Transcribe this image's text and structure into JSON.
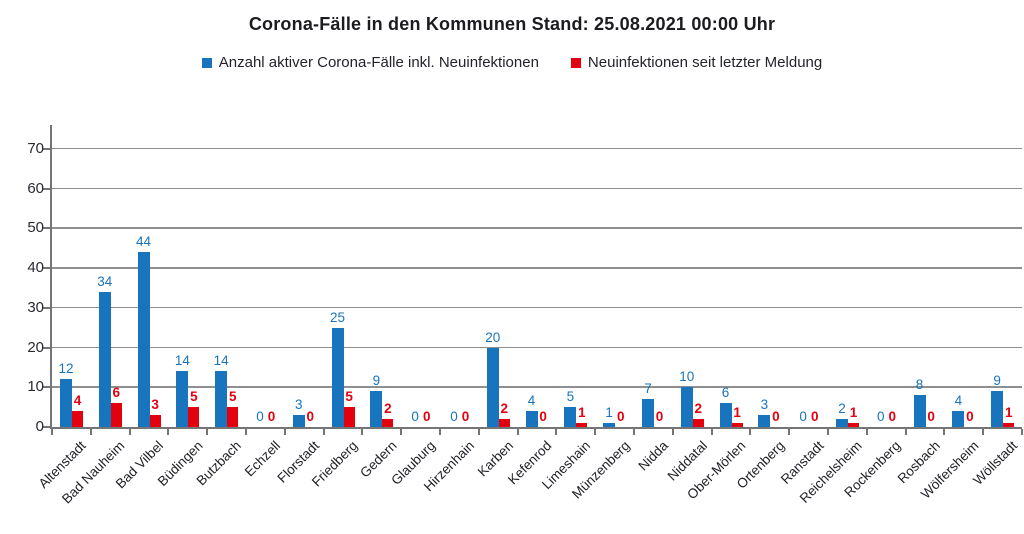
{
  "title": "Corona-Fälle in den Kommunen Stand: 25.08.2021 00:00 Uhr",
  "colors": {
    "active_cases_blue": "#1874BC",
    "new_infections_red": "#E3000F",
    "grid_gray": "#8f8f8f",
    "axis_gray": "#757575",
    "text_dark": "#23232b"
  },
  "chart_data": {
    "type": "bar",
    "title": "Corona-Fälle in den Kommunen Stand: 25.08.2021 00:00 Uhr",
    "categories": [
      "Altenstadt",
      "Bad Nauheim",
      "Bad Vilbel",
      "Büdingen",
      "Butzbach",
      "Echzell",
      "Florstadt",
      "Friedberg",
      "Gedern",
      "Glauburg",
      "Hirzenhain",
      "Karben",
      "Kefenrod",
      "Limeshain",
      "Münzenberg",
      "Nidda",
      "Niddatal",
      "Ober-Mörlen",
      "Ortenberg",
      "Ranstadt",
      "Reichelsheim",
      "Rockenberg",
      "Rosbach",
      "Wölfersheim",
      "Wöllstadt"
    ],
    "series": [
      {
        "name": "Anzahl aktiver Corona-Fälle inkl. Neuinfektionen",
        "color": "#1874BC",
        "values": [
          12,
          34,
          44,
          14,
          14,
          0,
          3,
          25,
          9,
          0,
          0,
          20,
          4,
          5,
          1,
          7,
          10,
          6,
          3,
          0,
          2,
          0,
          8,
          4,
          9
        ]
      },
      {
        "name": "Neuinfektionen seit letzter Meldung",
        "color": "#E3000F",
        "values": [
          4,
          6,
          3,
          5,
          5,
          0,
          0,
          5,
          2,
          0,
          0,
          2,
          0,
          1,
          0,
          0,
          2,
          1,
          0,
          0,
          1,
          0,
          0,
          0,
          1
        ]
      }
    ],
    "xlabel": "",
    "ylabel": "",
    "yticks": [
      0,
      10,
      20,
      30,
      40,
      50,
      60,
      70
    ],
    "ylim": [
      0,
      76
    ],
    "grid": true,
    "legend_position": "top",
    "value_labels": true
  }
}
